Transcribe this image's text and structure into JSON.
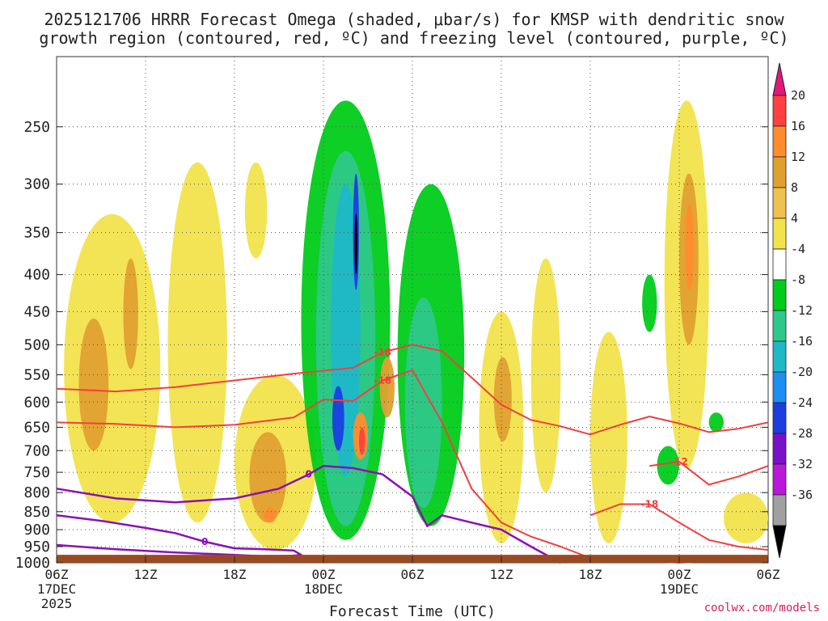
{
  "chart_data": {
    "type": "heatmap",
    "title_line1": "2025121706 HRRR Forecast Omega (shaded, μbar/s) for KMSP with dendritic snow",
    "title_line2": "growth region (contoured, red, ºC) and freezing level (contoured, purple, ºC)",
    "xlabel": "Forecast Time (UTC)",
    "credit": "coolwx.com/models",
    "x_hours_range": [
      0,
      48
    ],
    "x_ticks": [
      {
        "hour": 0,
        "label": "06Z",
        "sub1": "17DEC",
        "sub2": "2025"
      },
      {
        "hour": 6,
        "label": "12Z",
        "sub1": "",
        "sub2": ""
      },
      {
        "hour": 12,
        "label": "18Z",
        "sub1": "",
        "sub2": ""
      },
      {
        "hour": 18,
        "label": "00Z",
        "sub1": "18DEC",
        "sub2": ""
      },
      {
        "hour": 24,
        "label": "06Z",
        "sub1": "",
        "sub2": ""
      },
      {
        "hour": 30,
        "label": "12Z",
        "sub1": "",
        "sub2": ""
      },
      {
        "hour": 36,
        "label": "18Z",
        "sub1": "",
        "sub2": ""
      },
      {
        "hour": 42,
        "label": "00Z",
        "sub1": "19DEC",
        "sub2": ""
      },
      {
        "hour": 48,
        "label": "06Z",
        "sub1": "",
        "sub2": ""
      }
    ],
    "y_axis": "pressure (hPa), log scale, inverted",
    "y_range": [
      1000,
      200
    ],
    "y_ticks": [
      250,
      300,
      350,
      400,
      450,
      500,
      550,
      600,
      650,
      700,
      750,
      800,
      850,
      900,
      950,
      1000
    ],
    "colorbar": {
      "levels": [
        20,
        16,
        12,
        8,
        4,
        -4,
        -8,
        -12,
        -16,
        -20,
        -24,
        -28,
        -32,
        -36
      ],
      "colors": [
        "#ff4040",
        "#ff8c2e",
        "#e0a030",
        "#f0c050",
        "#f2e34c",
        "#ffffff",
        "#00cc1a",
        "#2ec88a",
        "#1fb8c8",
        "#1e8ef0",
        "#1a3ee0",
        "#7a10c8",
        "#b818d8",
        "#a0a0a0"
      ],
      "top_color": "#e0187a",
      "bottom_color": "#000000"
    },
    "omega_regions": [
      {
        "level": "4",
        "color": "#f2e34c",
        "hour_range": [
          0.5,
          7
        ],
        "p_range": [
          880,
          330
        ]
      },
      {
        "level": "8",
        "color": "#e0a030",
        "hour_range": [
          1.5,
          3.5
        ],
        "p_range": [
          700,
          460
        ]
      },
      {
        "level": "8",
        "color": "#e0a030",
        "hour_range": [
          4.5,
          5.5
        ],
        "p_range": [
          540,
          380
        ]
      },
      {
        "level": "4",
        "color": "#f2e34c",
        "hour_range": [
          7.5,
          11.5
        ],
        "p_range": [
          880,
          280
        ]
      },
      {
        "level": "4",
        "color": "#f2e34c",
        "hour_range": [
          12,
          17.5
        ],
        "p_range": [
          960,
          550
        ]
      },
      {
        "level": "8",
        "color": "#e0a030",
        "hour_range": [
          13,
          15.5
        ],
        "p_range": [
          880,
          660
        ]
      },
      {
        "level": "12",
        "color": "#ff8c2e",
        "hour_range": [
          14,
          14.8
        ],
        "p_range": [
          880,
          840
        ]
      },
      {
        "level": "4",
        "color": "#f2e34c",
        "hour_range": [
          12.7,
          14.2
        ],
        "p_range": [
          380,
          280
        ]
      },
      {
        "level": "-8",
        "color": "#00cc1a",
        "hour_range": [
          16.5,
          22.5
        ],
        "p_range": [
          930,
          230
        ]
      },
      {
        "level": "-12",
        "color": "#2ec88a",
        "hour_range": [
          17.5,
          21.5
        ],
        "p_range": [
          890,
          270
        ]
      },
      {
        "level": "-16",
        "color": "#1fb8c8",
        "hour_range": [
          18.5,
          20.5
        ],
        "p_range": [
          760,
          300
        ]
      },
      {
        "level": "-24",
        "color": "#1a3ee0",
        "hour_range": [
          20,
          20.4
        ],
        "p_range": [
          420,
          290
        ]
      },
      {
        "level": "-36",
        "color": "#000000",
        "hour_range": [
          20.1,
          20.3
        ],
        "p_range": [
          400,
          330
        ]
      },
      {
        "level": "-24",
        "color": "#1a3ee0",
        "hour_range": [
          18.6,
          19.4
        ],
        "p_range": [
          700,
          570
        ]
      },
      {
        "level": "12",
        "color": "#ff8c2e",
        "hour_range": [
          20,
          21
        ],
        "p_range": [
          720,
          620
        ]
      },
      {
        "level": "20",
        "color": "#ff4040",
        "hour_range": [
          20.4,
          20.8
        ],
        "p_range": [
          710,
          650
        ]
      },
      {
        "level": "-8",
        "color": "#00cc1a",
        "hour_range": [
          23,
          27.5
        ],
        "p_range": [
          890,
          300
        ]
      },
      {
        "level": "-12",
        "color": "#2ec88a",
        "hour_range": [
          23.5,
          26
        ],
        "p_range": [
          840,
          430
        ]
      },
      {
        "level": "8",
        "color": "#e0a030",
        "hour_range": [
          21.8,
          22.8
        ],
        "p_range": [
          630,
          520
        ]
      },
      {
        "level": "4",
        "color": "#f2e34c",
        "hour_range": [
          28.5,
          31.5
        ],
        "p_range": [
          940,
          450
        ]
      },
      {
        "level": "8",
        "color": "#e0a030",
        "hour_range": [
          29.5,
          30.7
        ],
        "p_range": [
          680,
          520
        ]
      },
      {
        "level": "4",
        "color": "#f2e34c",
        "hour_range": [
          32,
          34
        ],
        "p_range": [
          800,
          380
        ]
      },
      {
        "level": "4",
        "color": "#f2e34c",
        "hour_range": [
          36,
          38.5
        ],
        "p_range": [
          940,
          480
        ]
      },
      {
        "level": "-8",
        "color": "#00cc1a",
        "hour_range": [
          39.5,
          40.5
        ],
        "p_range": [
          480,
          400
        ]
      },
      {
        "level": "4",
        "color": "#f2e34c",
        "hour_range": [
          41,
          44
        ],
        "p_range": [
          740,
          230
        ]
      },
      {
        "level": "8",
        "color": "#e0a030",
        "hour_range": [
          42,
          43.3
        ],
        "p_range": [
          500,
          290
        ]
      },
      {
        "level": "12",
        "color": "#ff8c2e",
        "hour_range": [
          42.4,
          43
        ],
        "p_range": [
          420,
          320
        ]
      },
      {
        "level": "-8",
        "color": "#00cc1a",
        "hour_range": [
          40.5,
          42
        ],
        "p_range": [
          780,
          690
        ]
      },
      {
        "level": "-8",
        "color": "#00cc1a",
        "hour_range": [
          44,
          45
        ],
        "p_range": [
          660,
          620
        ]
      },
      {
        "level": "4",
        "color": "#f2e34c",
        "hour_range": [
          45,
          48
        ],
        "p_range": [
          940,
          800
        ]
      }
    ],
    "dendritic_contours": [
      {
        "label": "-18",
        "color": "#f04040",
        "points": [
          [
            0,
            575
          ],
          [
            4,
            580
          ],
          [
            8,
            572
          ],
          [
            12,
            560
          ],
          [
            16,
            548
          ],
          [
            20,
            538
          ],
          [
            22,
            512
          ],
          [
            24,
            500
          ],
          [
            26,
            510
          ],
          [
            28,
            555
          ],
          [
            30,
            605
          ],
          [
            32,
            635
          ],
          [
            34,
            648
          ],
          [
            36,
            665
          ],
          [
            38,
            645
          ],
          [
            40,
            628
          ],
          [
            42,
            642
          ],
          [
            44,
            660
          ],
          [
            46,
            653
          ],
          [
            48,
            640
          ]
        ]
      },
      {
        "label": "-18",
        "color": "#f04040",
        "points": [
          [
            0,
            640
          ],
          [
            4,
            643
          ],
          [
            8,
            650
          ],
          [
            12,
            645
          ],
          [
            16,
            630
          ],
          [
            18,
            595
          ],
          [
            20,
            598
          ],
          [
            22,
            560
          ],
          [
            24,
            542
          ],
          [
            26,
            640
          ],
          [
            28,
            790
          ],
          [
            30,
            880
          ],
          [
            32,
            920
          ],
          [
            34,
            950
          ],
          [
            36,
            985
          ],
          [
            38,
            990
          ],
          [
            40,
            995
          ],
          [
            42,
            1000
          ],
          [
            44,
            995
          ],
          [
            46,
            990
          ],
          [
            48,
            985
          ]
        ]
      },
      {
        "label": "-12",
        "color": "#f04040",
        "points": [
          [
            40,
            735
          ],
          [
            42,
            725
          ],
          [
            44,
            780
          ],
          [
            46,
            760
          ],
          [
            48,
            735
          ]
        ]
      },
      {
        "label": "-18",
        "color": "#f04040",
        "points": [
          [
            36,
            860
          ],
          [
            38,
            830
          ],
          [
            40,
            830
          ],
          [
            42,
            880
          ],
          [
            44,
            930
          ],
          [
            46,
            950
          ],
          [
            48,
            960
          ]
        ]
      }
    ],
    "freezing_level_contours": [
      {
        "label": "0",
        "color": "#8a10b8",
        "points": [
          [
            0,
            790
          ],
          [
            4,
            815
          ],
          [
            8,
            825
          ],
          [
            12,
            815
          ],
          [
            15,
            790
          ],
          [
            17,
            755
          ],
          [
            18,
            735
          ],
          [
            20,
            740
          ],
          [
            22,
            755
          ],
          [
            24,
            810
          ],
          [
            25,
            890
          ],
          [
            26,
            860
          ],
          [
            28,
            880
          ],
          [
            30,
            900
          ],
          [
            32,
            950
          ],
          [
            34,
            1000
          ]
        ]
      },
      {
        "label": "0",
        "color": "#8a10b8",
        "points": [
          [
            0,
            860
          ],
          [
            3,
            875
          ],
          [
            6,
            895
          ],
          [
            8,
            910
          ],
          [
            10,
            935
          ],
          [
            12,
            955
          ],
          [
            14,
            958
          ],
          [
            16,
            962
          ],
          [
            16.5,
            975
          ],
          [
            15,
            982
          ],
          [
            12,
            975
          ],
          [
            8,
            968
          ],
          [
            4,
            958
          ],
          [
            0,
            945
          ]
        ]
      }
    ],
    "ground_level_hpa": 975
  }
}
